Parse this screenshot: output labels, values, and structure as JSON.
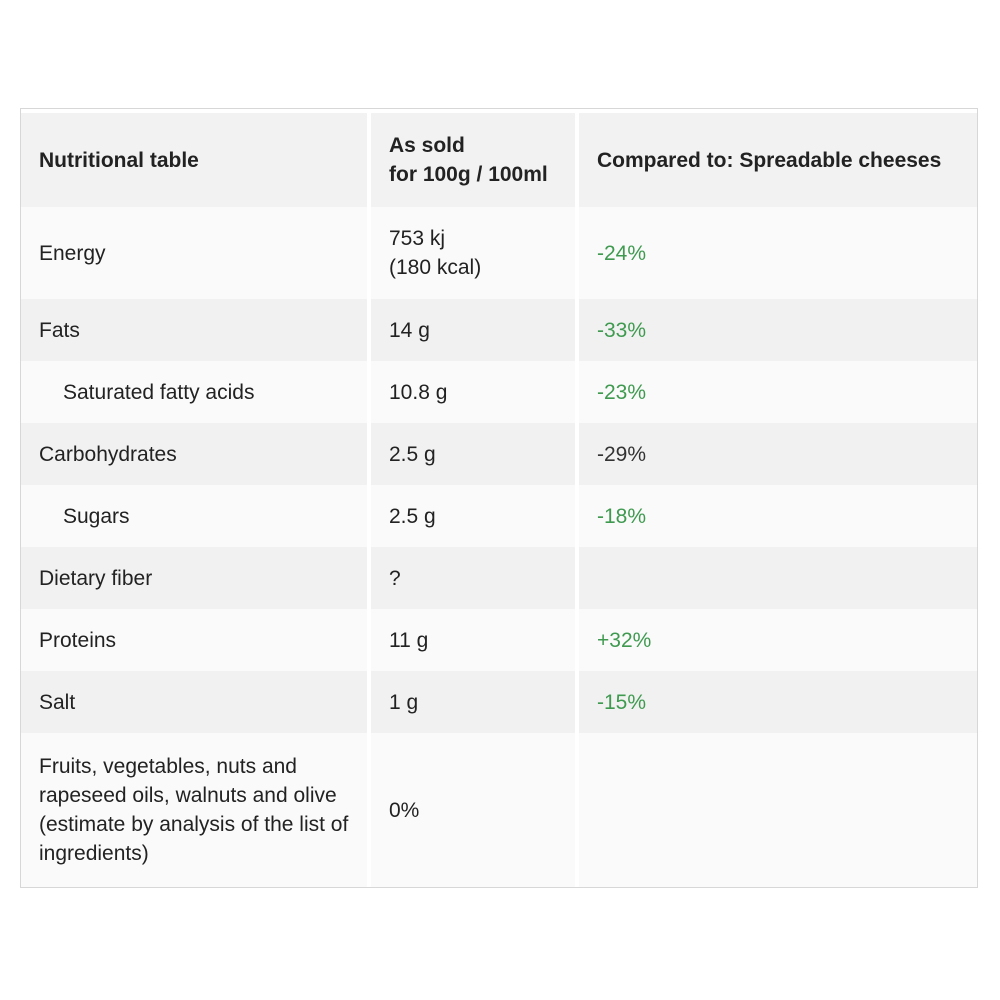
{
  "table": {
    "headers": {
      "col1": "Nutritional table",
      "col2_line1": "As sold",
      "col2_line2": "for 100g / 100ml",
      "col3": "Compared to: Spreadable cheeses"
    },
    "rows": [
      {
        "name": "Energy",
        "value_line1": "753 kj",
        "value_line2": "(180 kcal)",
        "compare": "-24%",
        "compare_color": "#3f9a50"
      },
      {
        "name": "Fats",
        "value": "14 g",
        "compare": "-33%",
        "compare_color": "#3f9a50"
      },
      {
        "name": "Saturated fatty acids",
        "value": "10.8 g",
        "compare": "-23%",
        "compare_color": "#3f9a50",
        "indented": true
      },
      {
        "name": "Carbohydrates",
        "value": "2.5 g",
        "compare": "-29%",
        "compare_color": "#333333"
      },
      {
        "name": "Sugars",
        "value": "2.5 g",
        "compare": "-18%",
        "compare_color": "#3f9a50",
        "indented": true
      },
      {
        "name": "Dietary fiber",
        "value": "?",
        "compare": ""
      },
      {
        "name": "Proteins",
        "value": "11 g",
        "compare": "+32%",
        "compare_color": "#3f9a50"
      },
      {
        "name": "Salt",
        "value": "1 g",
        "compare": "-15%",
        "compare_color": "#3f9a50"
      },
      {
        "name": "Fruits, vegetables, nuts and rapeseed oils, walnuts and olive (estimate by analysis of the list of ingredients)",
        "value": "0%",
        "compare": ""
      }
    ]
  }
}
